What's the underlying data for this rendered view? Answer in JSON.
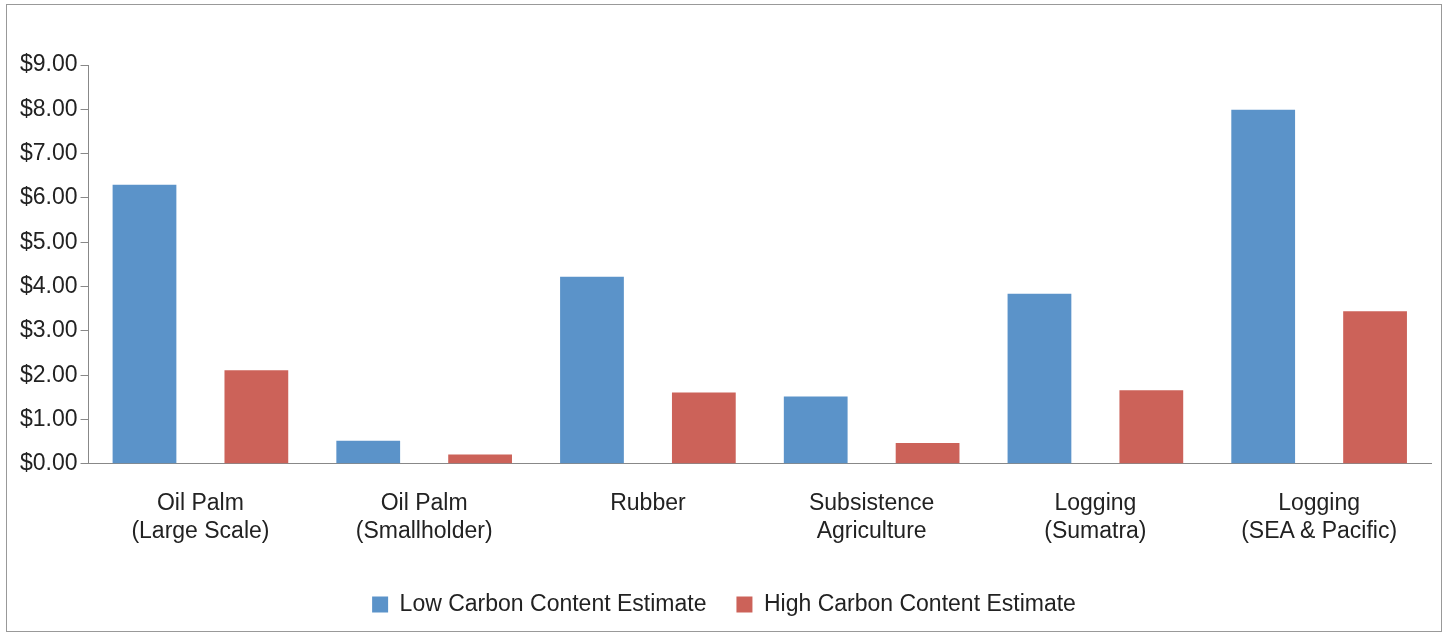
{
  "chart_data": {
    "type": "bar",
    "categories": [
      "Oil Palm\n(Large Scale)",
      "Oil Palm\n(Smallholder)",
      "Rubber",
      "Subsistence\nAgriculture",
      "Logging\n(Sumatra)",
      "Logging\n(SEA & Pacific)"
    ],
    "series": [
      {
        "name": "Low Carbon Content Estimate",
        "color": "#5b93c9",
        "values": [
          6.3,
          0.52,
          4.22,
          1.52,
          3.84,
          7.99
        ]
      },
      {
        "name": "High Carbon Content Estimate",
        "color": "#cc6259",
        "values": [
          2.11,
          0.21,
          1.61,
          0.47,
          1.66,
          3.44
        ]
      }
    ],
    "ylim": [
      0,
      9
    ],
    "yticks": [
      {
        "value": 0,
        "label": "$0.00"
      },
      {
        "value": 1,
        "label": "$1.00"
      },
      {
        "value": 2,
        "label": "$2.00"
      },
      {
        "value": 3,
        "label": "$3.00"
      },
      {
        "value": 4,
        "label": "$4.00"
      },
      {
        "value": 5,
        "label": "$5.00"
      },
      {
        "value": 6,
        "label": "$6.00"
      },
      {
        "value": 7,
        "label": "$7.00"
      },
      {
        "value": 8,
        "label": "$8.00"
      },
      {
        "value": 9,
        "label": "$9.00"
      }
    ],
    "grid": false,
    "legend": "bottom"
  }
}
